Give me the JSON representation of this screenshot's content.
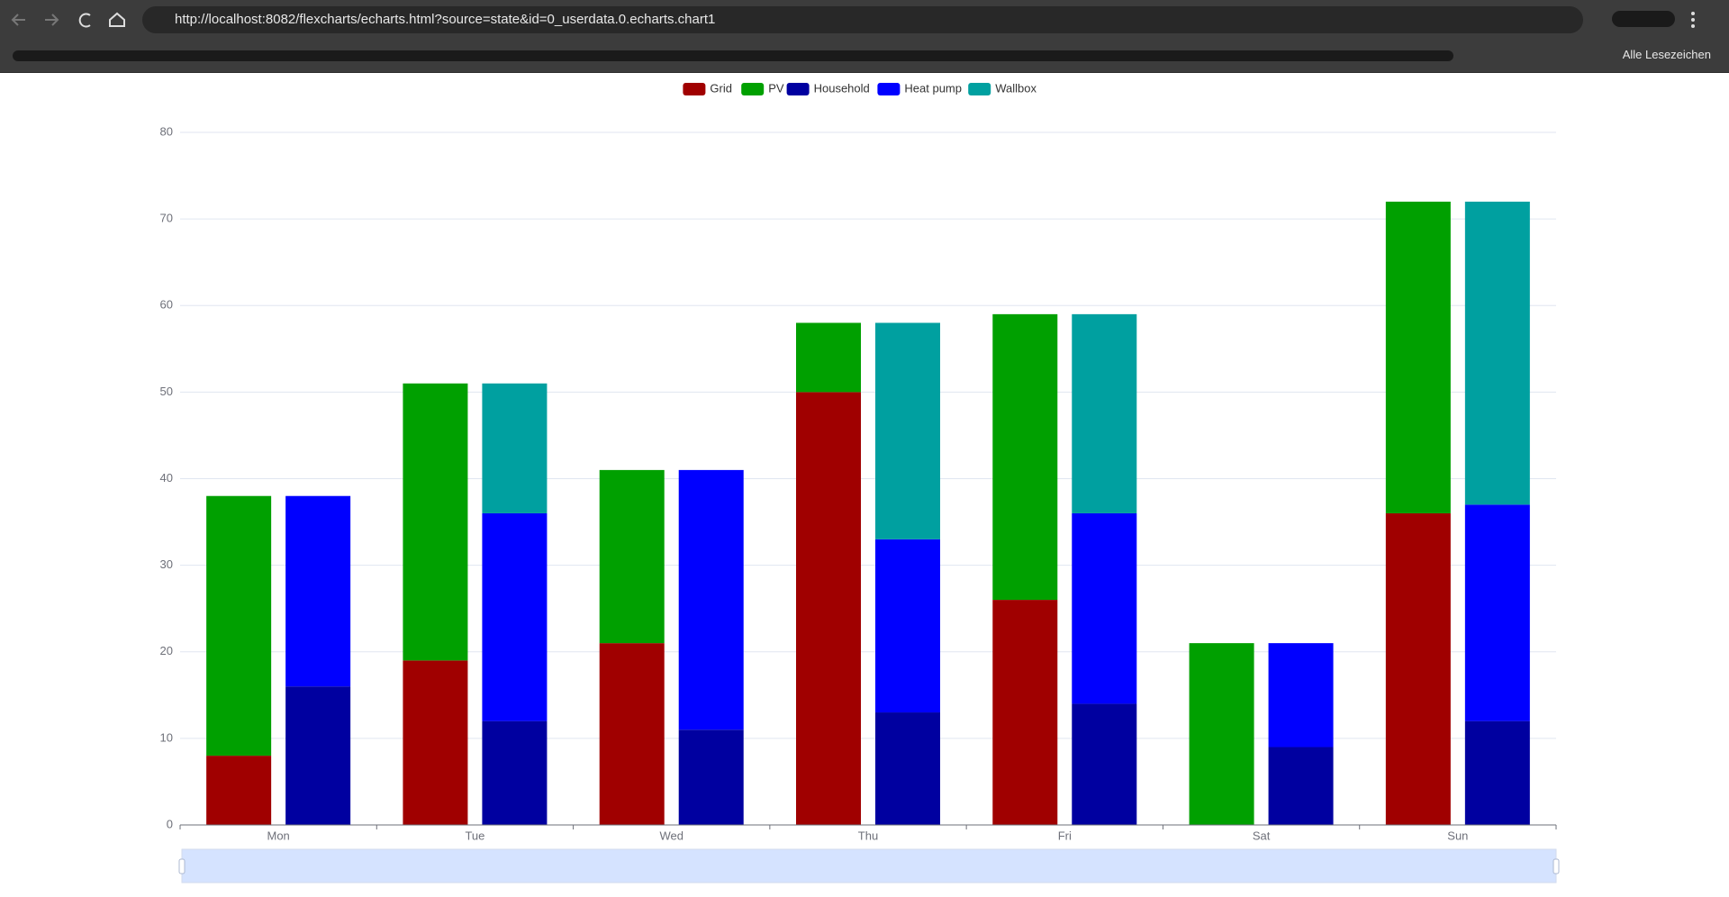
{
  "browser": {
    "url": "http://localhost:8082/flexcharts/echarts.html?source=state&id=0_userdata.0.echarts.chart1",
    "bookmarks": "Alle Lesezeichen"
  },
  "chart_data": {
    "type": "bar",
    "categories": [
      "Mon",
      "Tue",
      "Wed",
      "Thu",
      "Fri",
      "Sat",
      "Sun"
    ],
    "series": [
      {
        "name": "Grid",
        "color": "#a00000",
        "stack": 0,
        "values": [
          8,
          19,
          21,
          50,
          26,
          0,
          36
        ]
      },
      {
        "name": "PV",
        "color": "#00a000",
        "stack": 0,
        "values": [
          30,
          32,
          20,
          8,
          33,
          21,
          36
        ]
      },
      {
        "name": "Household",
        "color": "#0000a0",
        "stack": 1,
        "values": [
          16,
          12,
          11,
          13,
          14,
          9,
          12
        ]
      },
      {
        "name": "Heat pump",
        "color": "#0000ff",
        "stack": 1,
        "values": [
          22,
          24,
          30,
          20,
          22,
          12,
          25
        ]
      },
      {
        "name": "Wallbox",
        "color": "#00a0a0",
        "stack": 1,
        "values": [
          0,
          15,
          0,
          25,
          23,
          0,
          35
        ]
      }
    ],
    "ylim": [
      0,
      80
    ],
    "yticks": [
      0,
      10,
      20,
      30,
      40,
      50,
      60,
      70,
      80
    ],
    "grid": true,
    "legend": "top"
  }
}
